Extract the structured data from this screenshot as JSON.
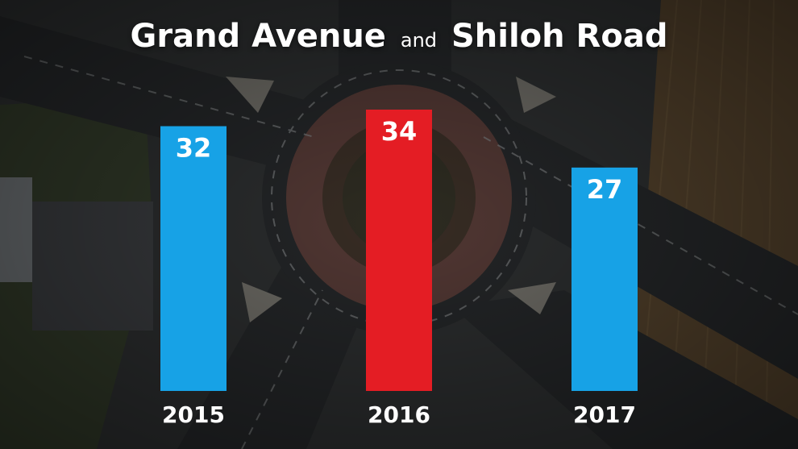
{
  "title": {
    "part1": "Grand Avenue",
    "conjunction": "and",
    "part2": "Shiloh Road"
  },
  "colors": {
    "normal_bar": "#17a2e6",
    "highlight_bar": "#e41d24",
    "text": "#ffffff"
  },
  "chart_data": {
    "type": "bar",
    "categories": [
      "2015",
      "2016",
      "2017"
    ],
    "values": [
      32,
      34,
      27
    ],
    "highlight_index": 1,
    "title": "Grand Avenue and Shiloh Road",
    "xlabel": "",
    "ylabel": "",
    "ylim": [
      0,
      34
    ],
    "grid": false,
    "legend": "none"
  }
}
